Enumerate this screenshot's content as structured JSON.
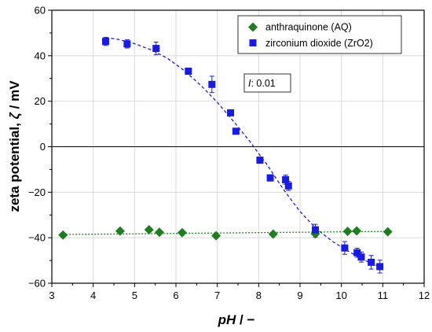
{
  "chart_data": {
    "type": "scatter",
    "title": "",
    "xlabel_main": "pH",
    "xlabel_rest": " / −",
    "ylabel_main": "zeta potential, ",
    "ylabel_symbol": "ζ",
    "ylabel_rest": " / mV",
    "xlim": [
      3,
      12
    ],
    "ylim": [
      -60,
      60
    ],
    "xticks": [
      3,
      4,
      5,
      6,
      7,
      8,
      9,
      10,
      11,
      12
    ],
    "yticks": [
      -60,
      -40,
      -20,
      0,
      20,
      40,
      60
    ],
    "xtick_labels": [
      "3",
      "4",
      "5",
      "6",
      "7",
      "8",
      "9",
      "10",
      "11",
      "12"
    ],
    "ytick_labels": [
      "−60",
      "−40",
      "−20",
      "0",
      "20",
      "40",
      "60"
    ],
    "grid": true,
    "legend_position": "top-right",
    "annotation": {
      "italic": "I",
      "rest": ": 0.01"
    },
    "series": [
      {
        "name": "anthraquinone (AQ)",
        "marker": "diamond",
        "color": "#1e7d1e",
        "x": [
          3.27,
          4.65,
          5.35,
          5.6,
          6.15,
          6.97,
          8.35,
          9.37,
          10.15,
          10.37,
          11.12
        ],
        "y": [
          -38.8,
          -37.1,
          -36.5,
          -37.6,
          -37.8,
          -39.1,
          -38.4,
          -38.3,
          -37.2,
          -37.0,
          -37.4
        ],
        "err": [
          0,
          0,
          0,
          0,
          0,
          0,
          0,
          1.5,
          0,
          0,
          0
        ]
      },
      {
        "name": "zirconium dioxide (ZrO2)",
        "marker": "square",
        "color": "#1a1ae6",
        "x": [
          4.3,
          4.82,
          5.52,
          6.3,
          6.87,
          7.32,
          7.45,
          8.03,
          8.28,
          8.65,
          8.72,
          9.37,
          10.08,
          10.38,
          10.48,
          10.72,
          10.93
        ],
        "y": [
          46.3,
          45.2,
          43.2,
          33.2,
          27.4,
          14.9,
          6.8,
          -5.9,
          -13.7,
          -14.5,
          -17.2,
          -36.5,
          -44.5,
          -46.6,
          -48.5,
          -50.8,
          -52.7
        ],
        "err": [
          1.8,
          1.8,
          2.8,
          0.8,
          3.6,
          0.8,
          0.8,
          1.4,
          1.4,
          2.0,
          2.0,
          2.4,
          2.8,
          2.0,
          2.2,
          3.0,
          2.8
        ]
      }
    ],
    "fits": [
      {
        "series": "zirconium dioxide (ZrO2)",
        "style": "dashed",
        "color": "#1a1ae6",
        "x": [
          4.3,
          4.6,
          5.0,
          5.4,
          5.8,
          6.2,
          6.6,
          7.0,
          7.4,
          7.8,
          8.0,
          8.2,
          8.6,
          9.0,
          9.4,
          9.8,
          10.2,
          10.6,
          11.0
        ],
        "y": [
          48.0,
          47.2,
          45.3,
          42.6,
          38.8,
          33.5,
          27.0,
          19.5,
          11.0,
          2.0,
          -3.0,
          -7.8,
          -18.8,
          -28.5,
          -36.2,
          -41.8,
          -46.3,
          -50.2,
          -53.5
        ]
      },
      {
        "series": "anthraquinone (AQ)",
        "style": "dotted",
        "color": "#1e7d1e",
        "x": [
          3.27,
          11.12
        ],
        "y": [
          -38.6,
          -37.2
        ]
      }
    ]
  }
}
